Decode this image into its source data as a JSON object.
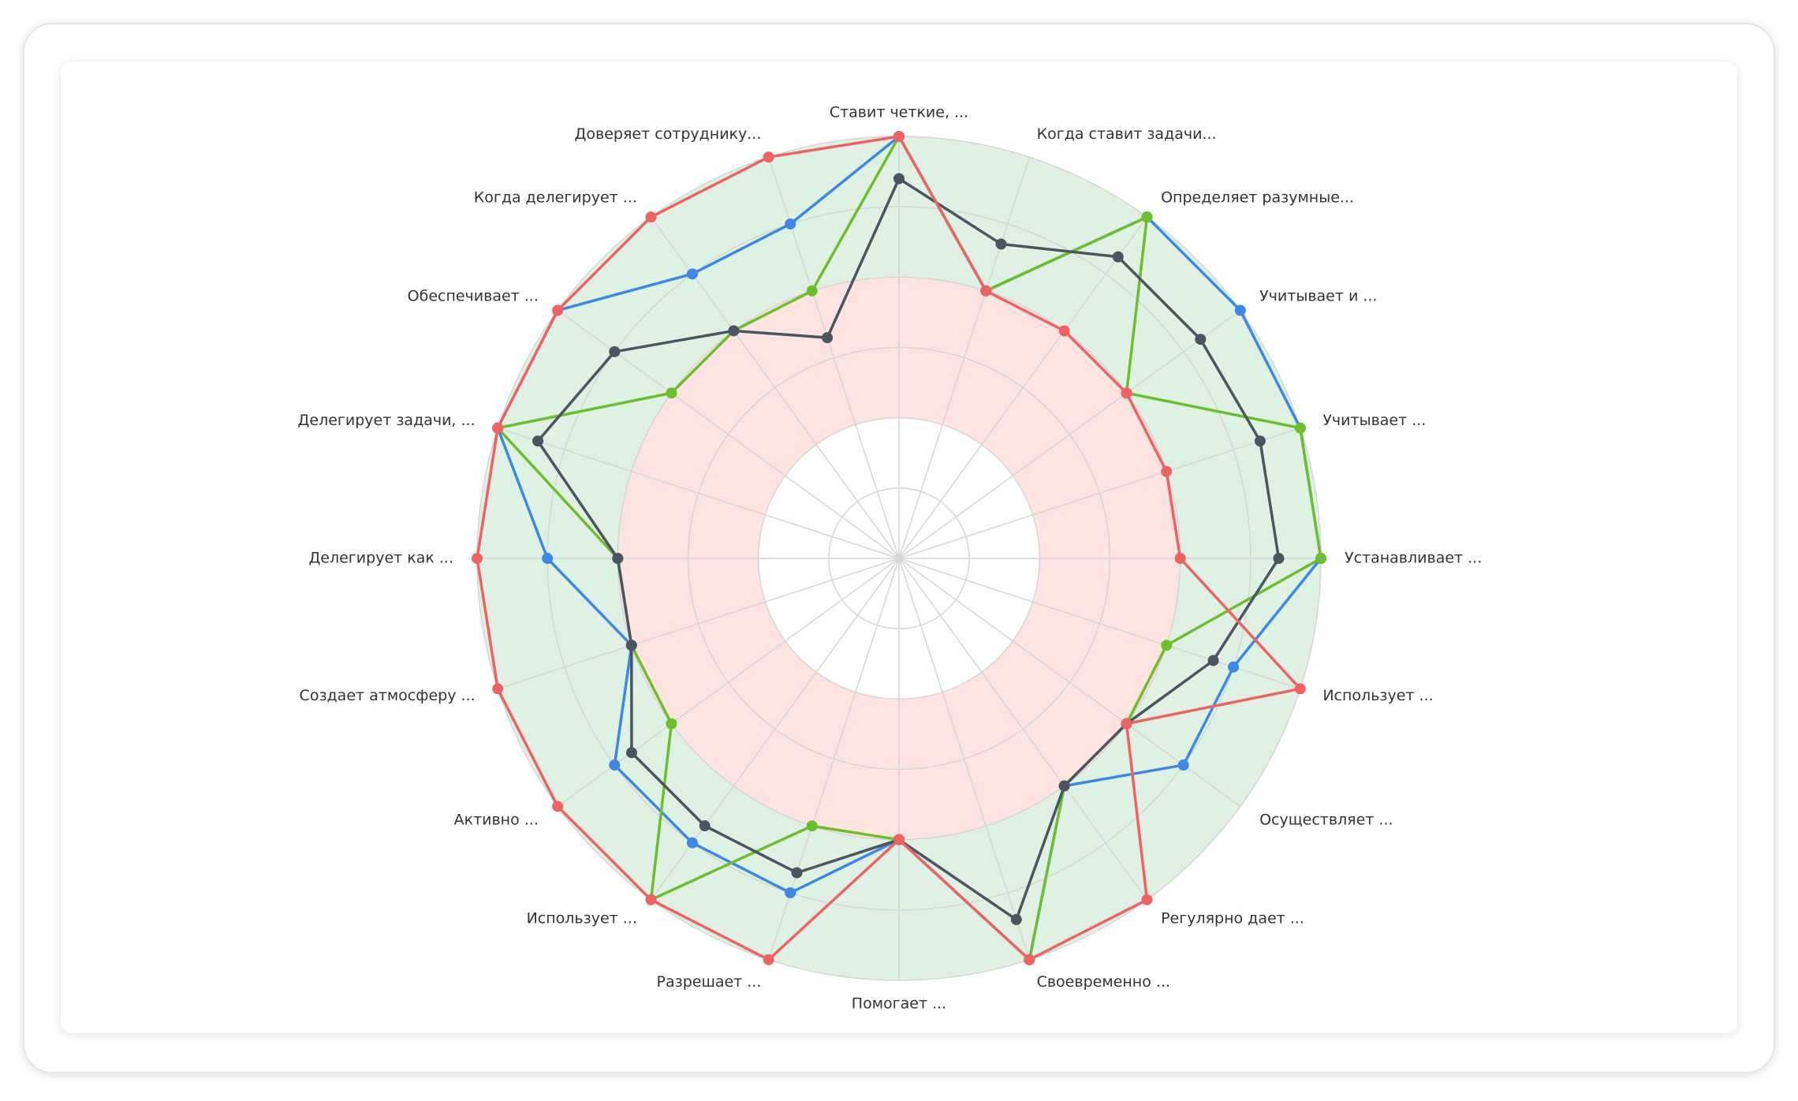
{
  "chart_data": {
    "type": "radar",
    "categories": [
      "Ставит четкие, ...",
      "Когда ставит задачи...",
      "Определяет разумные...",
      "Учитывает и ...",
      "Учитывает ...",
      "Устанавливает ...",
      "Использует ...",
      "Осуществляет ...",
      "Регулярно дает ...",
      "Своевременно ...",
      "Помогает ...",
      "Разрешает ...",
      "Использует ...",
      "Активно ...",
      "Создает атмосферу ...",
      "Делегирует как ...",
      "Делегирует задачи, ...",
      "Обеспечивает ...",
      "Когда делегирует ...",
      "Доверяет сотруднику..."
    ],
    "rlim": [
      0,
      6
    ],
    "rticks": [
      1,
      2,
      3,
      4,
      5,
      6
    ],
    "grid": true,
    "bands": [
      {
        "from": 0,
        "to": 2,
        "color": "#ffffff"
      },
      {
        "from": 2,
        "to": 4,
        "color": "#fde4e1"
      },
      {
        "from": 4,
        "to": 6,
        "color": "#dff1e3"
      }
    ],
    "series": [
      {
        "color": "#3b88e8",
        "values": [
          6,
          4,
          6,
          6,
          6,
          6,
          5,
          5,
          4,
          6,
          4,
          5,
          5,
          5,
          4,
          5,
          6,
          6,
          5,
          5
        ]
      },
      {
        "color": "#6cbf2a",
        "values": [
          6,
          4,
          6,
          4,
          6,
          6,
          4,
          4,
          4,
          6,
          4,
          4,
          6,
          4,
          4,
          4,
          6,
          4,
          4,
          4
        ]
      },
      {
        "color": "#4a5561",
        "values": [
          5.4,
          4.7,
          5.3,
          5.3,
          5.4,
          5.4,
          4.7,
          4,
          4,
          5.4,
          4,
          4.7,
          4.7,
          4.7,
          4,
          4,
          5.4,
          5,
          4,
          3.3
        ]
      },
      {
        "color": "#f06262",
        "values": [
          6,
          4,
          4,
          4,
          4,
          4,
          6,
          4,
          6,
          6,
          4,
          6,
          6,
          6,
          6,
          6,
          6,
          6,
          6,
          6
        ]
      }
    ]
  }
}
